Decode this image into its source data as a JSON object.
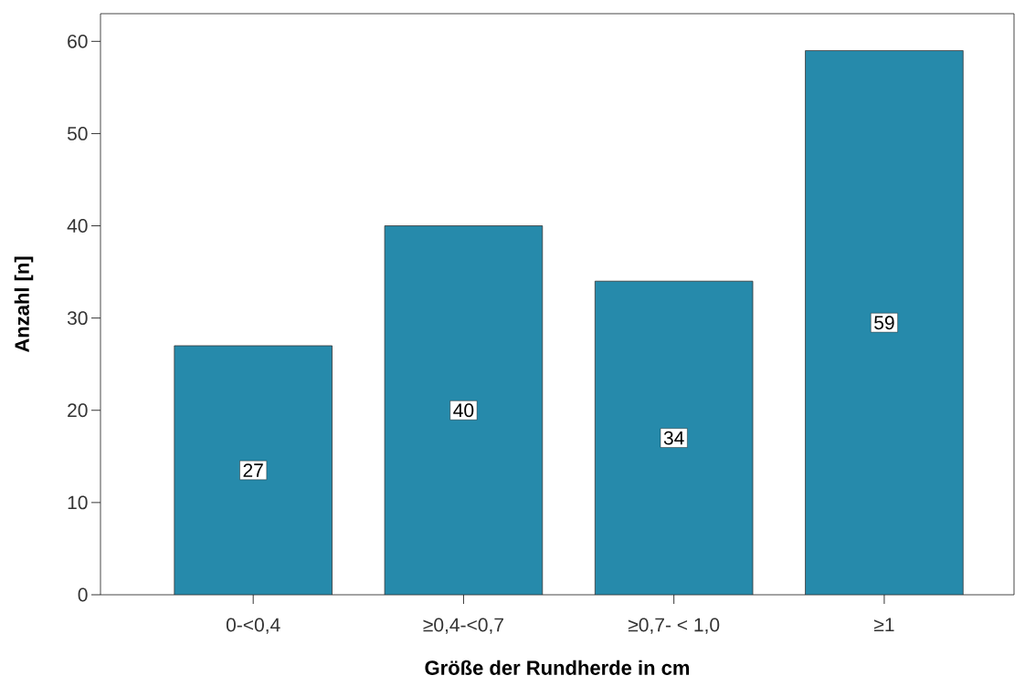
{
  "chart_data": {
    "type": "bar",
    "xlabel": "Größe der Rundherde in cm",
    "ylabel": "Anzahl [n]",
    "categories": [
      "0-<0,4",
      "≥0,4-<0,7",
      "≥0,7- < 1,0",
      "≥1"
    ],
    "values": [
      27,
      40,
      34,
      59
    ],
    "color": "#268aab",
    "ylim": [
      0,
      63
    ],
    "yticks": [
      0,
      10,
      20,
      30,
      40,
      50,
      60
    ],
    "data_labels": true,
    "grid": false
  }
}
